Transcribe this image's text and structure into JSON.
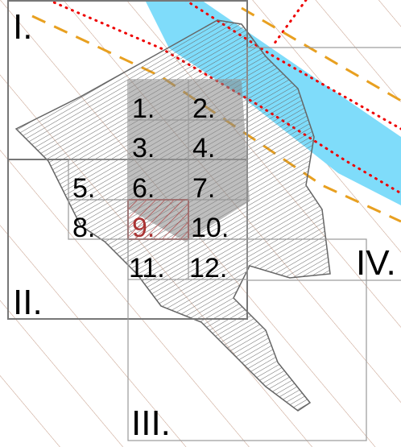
{
  "regions": [
    "I.",
    "II.",
    "III.",
    "IV."
  ],
  "cells": [
    "1.",
    "2.",
    "3.",
    "4.",
    "5.",
    "6.",
    "7.",
    "8.",
    "9.",
    "10.",
    "11.",
    "12."
  ]
}
